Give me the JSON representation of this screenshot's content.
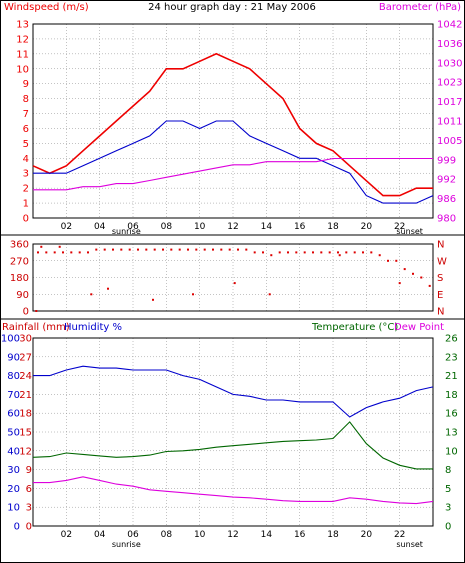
{
  "title": "24 hour graph day : 21 May 2006",
  "colors": {
    "windspeed": "#ee0000",
    "wind_avg": "#0000cc",
    "barometer": "#dd00dd",
    "direction": "#dd0000",
    "rainfall": "#cc0000",
    "humidity": "#0000cc",
    "temperature": "#006600",
    "dewpoint": "#dd00dd",
    "border": "#0000aa",
    "grid": "#888888"
  },
  "hour_ticks": [
    "02",
    "04",
    "06",
    "08",
    "10",
    "12",
    "14",
    "16",
    "18",
    "20",
    "22"
  ],
  "markers": {
    "sunrise": "sunrise",
    "sunset": "sunset"
  },
  "chart_data": [
    {
      "type": "line",
      "id": "wind",
      "title": "24 hour graph day : 21 May 2006",
      "left_label": "Windspeed (m/s)",
      "right_label": "Barometer (hPa)",
      "left_ticks": [
        "13",
        "12",
        "11",
        "10",
        "9",
        "8",
        "7",
        "6",
        "5",
        "4",
        "3",
        "2",
        "1",
        "0"
      ],
      "right_ticks": [
        "1042",
        "1036",
        "1030",
        "1023",
        "1017",
        "1011",
        "1005",
        "999",
        "992",
        "986",
        "980"
      ],
      "ylim": [
        0,
        13
      ],
      "y2lim": [
        980,
        1042
      ],
      "x_hours": [
        0,
        1,
        2,
        3,
        4,
        5,
        6,
        7,
        8,
        9,
        10,
        11,
        12,
        13,
        14,
        15,
        16,
        17,
        18,
        19,
        20,
        21,
        22,
        23,
        24
      ],
      "series": [
        {
          "name": "Windspeed",
          "axis": "left",
          "values": [
            3.5,
            3.0,
            3.5,
            4.5,
            5.5,
            6.5,
            7.5,
            8.5,
            10.0,
            10.0,
            10.5,
            11.0,
            10.5,
            10.0,
            9.0,
            8.0,
            6.0,
            5.0,
            4.5,
            3.5,
            2.5,
            1.5,
            1.5,
            2.0,
            2.0
          ]
        },
        {
          "name": "Windspeed average",
          "axis": "left",
          "values": [
            3.0,
            3.0,
            3.0,
            3.5,
            4.0,
            4.5,
            5.0,
            5.5,
            6.5,
            6.5,
            6.0,
            6.5,
            6.5,
            5.5,
            5.0,
            4.5,
            4.0,
            4.0,
            3.5,
            3.0,
            1.5,
            1.0,
            1.0,
            1.0,
            1.5
          ]
        },
        {
          "name": "Barometer",
          "axis": "right",
          "values": [
            989,
            989,
            989,
            990,
            990,
            991,
            991,
            992,
            993,
            994,
            995,
            996,
            997,
            997,
            998,
            998,
            998,
            998,
            999,
            999,
            999,
            999,
            999,
            999,
            999
          ]
        }
      ]
    },
    {
      "type": "scatter",
      "id": "direction",
      "left_ticks": [
        "360",
        "270",
        "180",
        "90",
        "0"
      ],
      "right_ticks": [
        "N",
        "W",
        "S",
        "E",
        "N"
      ],
      "ylim": [
        0,
        360
      ],
      "points": [
        [
          0.3,
          315
        ],
        [
          0.8,
          315
        ],
        [
          1.3,
          315
        ],
        [
          1.8,
          315
        ],
        [
          2.3,
          315
        ],
        [
          2.8,
          315
        ],
        [
          3.3,
          315
        ],
        [
          3.8,
          330
        ],
        [
          4.3,
          330
        ],
        [
          4.8,
          330
        ],
        [
          5.3,
          330
        ],
        [
          5.8,
          330
        ],
        [
          6.3,
          330
        ],
        [
          6.8,
          330
        ],
        [
          7.3,
          330
        ],
        [
          7.8,
          330
        ],
        [
          8.3,
          330
        ],
        [
          8.8,
          330
        ],
        [
          9.3,
          330
        ],
        [
          9.8,
          330
        ],
        [
          10.3,
          330
        ],
        [
          10.8,
          330
        ],
        [
          11.3,
          330
        ],
        [
          11.8,
          330
        ],
        [
          12.3,
          330
        ],
        [
          12.8,
          330
        ],
        [
          13.3,
          315
        ],
        [
          13.8,
          315
        ],
        [
          14.3,
          300
        ],
        [
          14.8,
          315
        ],
        [
          15.3,
          315
        ],
        [
          15.8,
          315
        ],
        [
          16.3,
          315
        ],
        [
          16.8,
          315
        ],
        [
          17.3,
          315
        ],
        [
          17.8,
          315
        ],
        [
          18.3,
          315
        ],
        [
          18.8,
          315
        ],
        [
          19.3,
          315
        ],
        [
          19.8,
          315
        ],
        [
          20.3,
          315
        ],
        [
          20.8,
          300
        ],
        [
          21.3,
          270
        ],
        [
          21.8,
          270
        ],
        [
          22.3,
          225
        ],
        [
          22.8,
          200
        ],
        [
          23.3,
          180
        ],
        [
          23.8,
          135
        ],
        [
          0.2,
          0
        ],
        [
          0.5,
          345
        ],
        [
          1.6,
          345
        ],
        [
          3.5,
          90
        ],
        [
          4.5,
          120
        ],
        [
          7.2,
          60
        ],
        [
          9.6,
          90
        ],
        [
          12.1,
          150
        ],
        [
          14.2,
          90
        ],
        [
          18.4,
          300
        ],
        [
          22.0,
          150
        ]
      ]
    },
    {
      "type": "line",
      "id": "weather",
      "left_label_rain": "Rainfall (mm)",
      "left_label_humidity": "Humidity %",
      "right_label_temperature": "Temperature (°C)",
      "right_label_dewpoint": "Dew Point",
      "humidity_ticks": [
        "100",
        "90",
        "80",
        "70",
        "60",
        "50",
        "40",
        "30",
        "20",
        "10",
        "0"
      ],
      "rain_ticks": [
        "30",
        "27",
        "24",
        "21",
        "18",
        "15",
        "12",
        "9",
        "6",
        "3",
        "0"
      ],
      "right_ticks": [
        "26",
        "23",
        "21",
        "18",
        "16",
        "13",
        "10",
        "8",
        "5",
        "3",
        "0"
      ],
      "ylim": [
        0,
        100
      ],
      "y2lim": [
        0,
        26
      ],
      "x_hours": [
        0,
        1,
        2,
        3,
        4,
        5,
        6,
        7,
        8,
        9,
        10,
        11,
        12,
        13,
        14,
        15,
        16,
        17,
        18,
        19,
        20,
        21,
        22,
        23,
        24
      ],
      "series": [
        {
          "name": "Humidity",
          "axis": "left",
          "values": [
            80,
            80,
            83,
            85,
            84,
            84,
            83,
            83,
            83,
            80,
            78,
            74,
            70,
            69,
            67,
            67,
            66,
            66,
            66,
            58,
            63,
            66,
            68,
            72,
            74
          ]
        },
        {
          "name": "Temperature",
          "axis": "right",
          "values": [
            9.5,
            9.6,
            10.1,
            9.9,
            9.7,
            9.5,
            9.6,
            9.8,
            10.3,
            10.4,
            10.6,
            10.9,
            11.1,
            11.3,
            11.5,
            11.7,
            11.8,
            11.9,
            12.1,
            14.4,
            11.4,
            9.4,
            8.4,
            7.9,
            7.9
          ]
        },
        {
          "name": "Dew Point",
          "axis": "right",
          "values": [
            6.0,
            6.0,
            6.3,
            6.8,
            6.3,
            5.8,
            5.5,
            5.0,
            4.8,
            4.6,
            4.4,
            4.2,
            4.0,
            3.9,
            3.7,
            3.5,
            3.4,
            3.4,
            3.4,
            3.9,
            3.7,
            3.4,
            3.2,
            3.1,
            3.4
          ]
        }
      ]
    }
  ]
}
